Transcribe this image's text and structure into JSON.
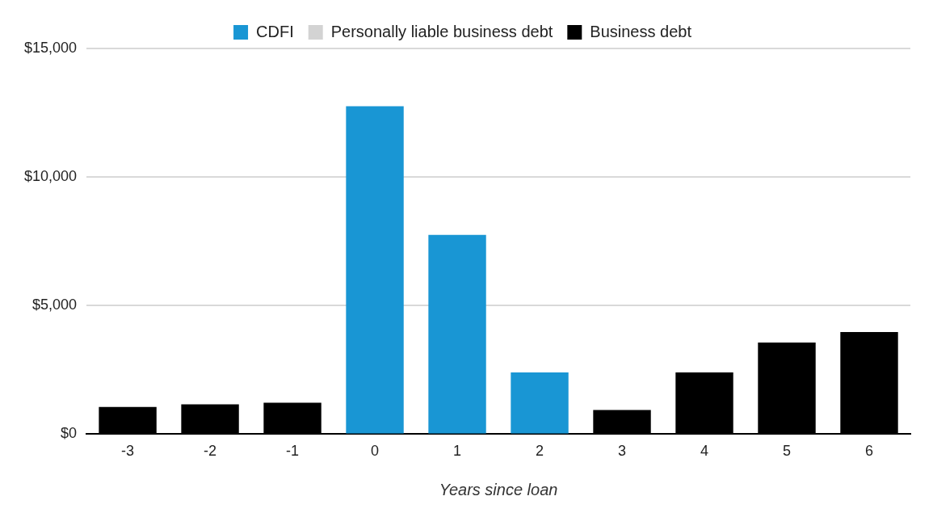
{
  "chart_data": {
    "type": "bar",
    "xlabel": "Years since loan",
    "categories": [
      "-3",
      "-2",
      "-1",
      "0",
      "1",
      "2",
      "3",
      "4",
      "5",
      "6"
    ],
    "series": [
      {
        "name": "CDFI",
        "color": "#1996d4",
        "values": [
          null,
          null,
          null,
          12750,
          7750,
          2400,
          null,
          null,
          null,
          null
        ]
      },
      {
        "name": "Personally liable business debt",
        "color": "#d3d3d3",
        "values": [
          null,
          null,
          null,
          null,
          null,
          null,
          null,
          null,
          null,
          null
        ]
      },
      {
        "name": "Business debt",
        "color": "#000000",
        "values": [
          1060,
          1160,
          1220,
          null,
          null,
          null,
          940,
          2400,
          3560,
          3970
        ]
      }
    ],
    "stacked": true,
    "ylim": [
      0,
      15000
    ],
    "yticks": [
      {
        "value": 0,
        "label": "$0"
      },
      {
        "value": 5000,
        "label": "$5,000"
      },
      {
        "value": 10000,
        "label": "$10,000"
      },
      {
        "value": 15000,
        "label": "$15,000"
      }
    ],
    "grid": "y",
    "legend": "top"
  }
}
